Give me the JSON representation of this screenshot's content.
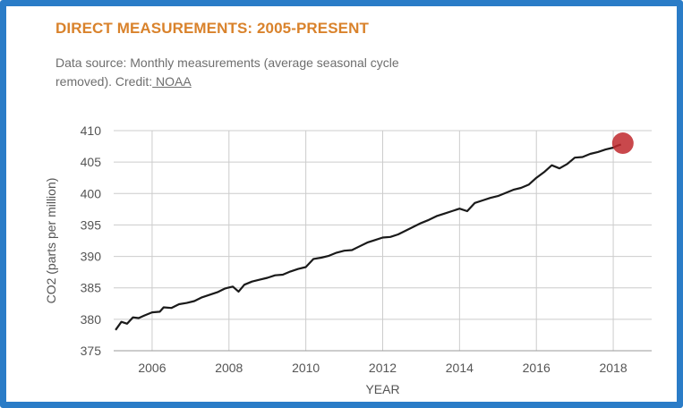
{
  "header": {
    "title": "DIRECT MEASUREMENTS: 2005-PRESENT",
    "source_text": "Data source: Monthly measurements (average seasonal cycle removed). Credit:",
    "credit_link": " NOAA"
  },
  "colors": {
    "frame": "#2a7cc7",
    "title": "#d9822b",
    "line": "#1a1a1a",
    "marker": "#c0282d",
    "grid": "#cccccc"
  },
  "chart_data": {
    "type": "line",
    "xlabel": "YEAR",
    "ylabel": "CO2 (parts per million)",
    "xlim": [
      2005.0,
      2019.0
    ],
    "ylim": [
      375,
      410
    ],
    "x_ticks": [
      "2006",
      "2008",
      "2010",
      "2012",
      "2014",
      "2016",
      "2018"
    ],
    "y_ticks": [
      "375",
      "380",
      "385",
      "390",
      "395",
      "400",
      "405",
      "410"
    ],
    "grid": true,
    "series": [
      {
        "x": [
          2005.05,
          2005.2,
          2005.35,
          2005.5,
          2005.65,
          2005.8,
          2006.0,
          2006.2,
          2006.3,
          2006.5,
          2006.7,
          2006.9,
          2007.1,
          2007.3,
          2007.5,
          2007.7,
          2007.9,
          2008.1,
          2008.25,
          2008.4,
          2008.6,
          2008.8,
          2009.0,
          2009.2,
          2009.4,
          2009.6,
          2009.8,
          2010.0,
          2010.2,
          2010.4,
          2010.6,
          2010.8,
          2011.0,
          2011.2,
          2011.4,
          2011.6,
          2011.8,
          2012.0,
          2012.2,
          2012.4,
          2012.6,
          2012.8,
          2013.0,
          2013.2,
          2013.4,
          2013.6,
          2013.8,
          2014.0,
          2014.2,
          2014.4,
          2014.6,
          2014.8,
          2015.0,
          2015.2,
          2015.4,
          2015.6,
          2015.8,
          2016.0,
          2016.2,
          2016.4,
          2016.6,
          2016.8,
          2017.0,
          2017.2,
          2017.4,
          2017.6,
          2017.8,
          2018.0,
          2018.1,
          2018.2
        ],
        "values": [
          378.3,
          379.6,
          379.3,
          380.3,
          380.2,
          380.6,
          381.1,
          381.2,
          381.9,
          381.8,
          382.4,
          382.6,
          382.9,
          383.5,
          383.9,
          384.3,
          384.9,
          385.2,
          384.4,
          385.5,
          386.0,
          386.3,
          386.6,
          387.0,
          387.1,
          387.6,
          388.0,
          388.3,
          389.6,
          389.8,
          390.1,
          390.6,
          390.9,
          391.0,
          391.6,
          392.2,
          392.6,
          393.0,
          393.1,
          393.5,
          394.1,
          394.7,
          395.3,
          395.8,
          396.4,
          396.8,
          397.2,
          397.6,
          397.2,
          398.5,
          398.9,
          399.3,
          399.6,
          400.1,
          400.6,
          400.9,
          401.4,
          402.5,
          403.4,
          404.5,
          404.0,
          404.7,
          405.7,
          405.8,
          406.3,
          406.6,
          407.0,
          407.3,
          407.6,
          407.8
        ]
      }
    ],
    "highlight": {
      "x": 2018.25,
      "value": 408.0
    }
  }
}
